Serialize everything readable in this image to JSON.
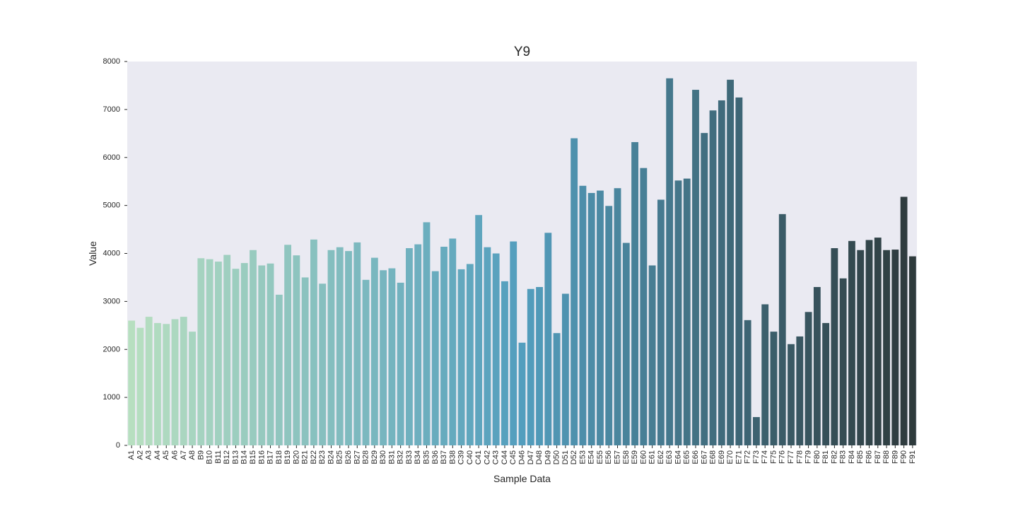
{
  "chart_data": {
    "type": "bar",
    "title": "Y9",
    "xlabel": "Sample Data",
    "ylabel": "Value",
    "ylim": [
      0,
      8000
    ],
    "yticks": [
      0,
      1000,
      2000,
      3000,
      4000,
      5000,
      6000,
      7000,
      8000
    ],
    "grid": false,
    "palette_start": "#b7dfc0",
    "palette_mid": "#539ebe",
    "palette_end": "#2e3a3c",
    "background": "#eaeaf2",
    "categories": [
      "A1",
      "A2",
      "A3",
      "A4",
      "A5",
      "A6",
      "A7",
      "A8",
      "B9",
      "B10",
      "B11",
      "B12",
      "B13",
      "B14",
      "B15",
      "B16",
      "B17",
      "B18",
      "B19",
      "B20",
      "B21",
      "B22",
      "B23",
      "B24",
      "B25",
      "B26",
      "B27",
      "B28",
      "B29",
      "B30",
      "B31",
      "B32",
      "B33",
      "B34",
      "B35",
      "B36",
      "B37",
      "B38",
      "C39",
      "C40",
      "C41",
      "C42",
      "C43",
      "C44",
      "C45",
      "D46",
      "D47",
      "D48",
      "D49",
      "D50",
      "D51",
      "D52",
      "E53",
      "E54",
      "E55",
      "E56",
      "E57",
      "E58",
      "E59",
      "E60",
      "E61",
      "E62",
      "E63",
      "E64",
      "E65",
      "E66",
      "E67",
      "E68",
      "E69",
      "E70",
      "E71",
      "F72",
      "F73",
      "F74",
      "F75",
      "F76",
      "F77",
      "F78",
      "F79",
      "F80",
      "F81",
      "F82",
      "F83",
      "F84",
      "F85",
      "F86",
      "F87",
      "F88",
      "F89",
      "F90",
      "F91"
    ],
    "values": [
      2600,
      2450,
      2680,
      2550,
      2530,
      2630,
      2680,
      2370,
      3900,
      3880,
      3830,
      3970,
      3680,
      3800,
      4070,
      3750,
      3790,
      3140,
      4180,
      3960,
      3500,
      4290,
      3370,
      4070,
      4130,
      4050,
      4230,
      3450,
      3910,
      3650,
      3690,
      3390,
      4110,
      4190,
      4650,
      3630,
      4140,
      4310,
      3670,
      3780,
      4800,
      4130,
      4000,
      3420,
      4250,
      2140,
      3260,
      3300,
      4430,
      2340,
      3160,
      6400,
      5410,
      5260,
      5310,
      4990,
      5360,
      4220,
      6320,
      5780,
      3750,
      5120,
      7650,
      5520,
      5560,
      7410,
      6510,
      6980,
      7190,
      7620,
      7250,
      2610,
      590,
      2940,
      2370,
      4820,
      2110,
      2270,
      2780,
      3300,
      2550,
      4110,
      3480,
      4260,
      4070,
      4280,
      4330,
      4070,
      4080,
      5180,
      3940
    ]
  }
}
